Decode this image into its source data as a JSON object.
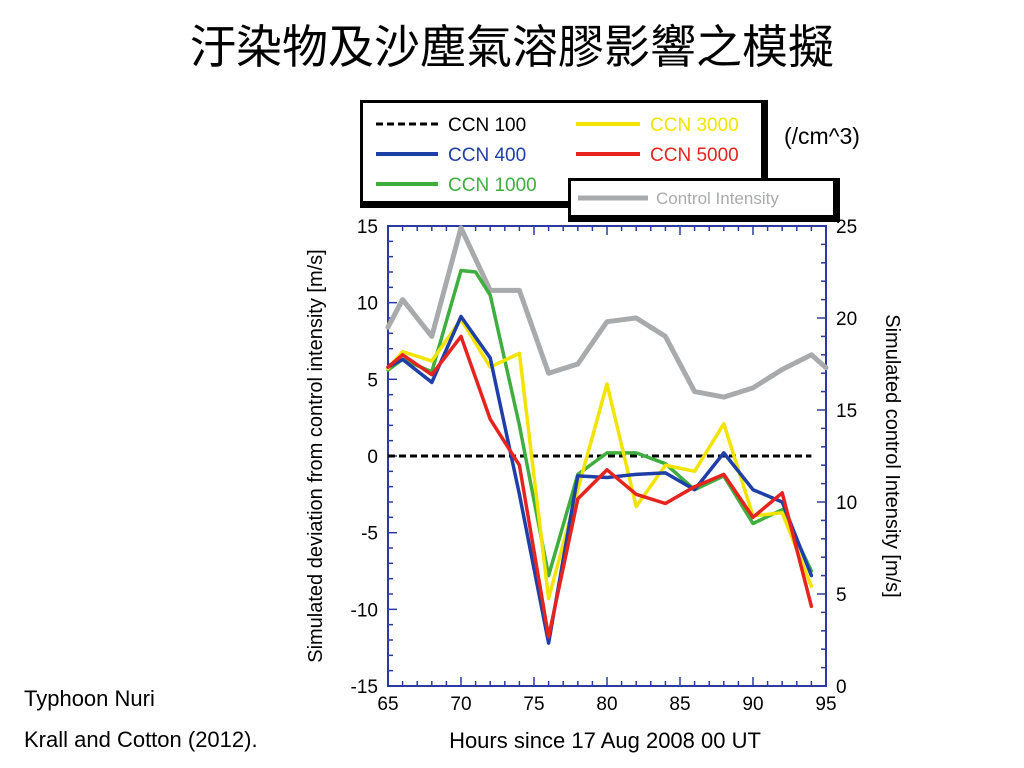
{
  "slide": {
    "title": "汙染物及沙塵氣溶膠影響之模擬",
    "unit_note": "(/cm^3)",
    "caption_line1": "Typhoon Nuri",
    "caption_line2": "Krall and Cotton (2012)."
  },
  "chart_data": {
    "type": "line",
    "xlabel": "Hours since 17 Aug 2008 00 UT",
    "ylabel": "Simulated deviation from control intensity [m/s]",
    "y2label": "Simulated control Intensity [m/s]",
    "xlim": [
      65,
      95
    ],
    "ylim": [
      -15,
      15
    ],
    "y2lim": [
      0,
      25
    ],
    "xticks": [
      65,
      70,
      75,
      80,
      85,
      90,
      95
    ],
    "yticks": [
      15,
      10,
      5,
      0,
      -5,
      -10,
      -15
    ],
    "y2ticks": [
      25,
      20,
      15,
      10,
      5,
      0
    ],
    "legend_placement": "top",
    "series": [
      {
        "name": "CCN 100",
        "color": "#000000",
        "dashed": true,
        "axis": "left",
        "x": [
          65,
          94
        ],
        "values": [
          0,
          0
        ]
      },
      {
        "name": "CCN 400",
        "color": "#1f3fa8",
        "axis": "left",
        "x": [
          65,
          66,
          68,
          70,
          72,
          74,
          76,
          78,
          80,
          82,
          84,
          86,
          88,
          90,
          92,
          94
        ],
        "values": [
          5.8,
          6.3,
          4.8,
          9.1,
          6.4,
          -2.5,
          -12.2,
          -1.3,
          -1.4,
          -1.2,
          -1.1,
          -2.2,
          0.2,
          -2.2,
          -3.0,
          -7.8
        ]
      },
      {
        "name": "CCN 1000",
        "color": "#3fae3f",
        "axis": "left",
        "x": [
          65,
          66,
          68,
          70,
          71,
          72,
          74,
          76,
          78,
          80,
          82,
          84,
          86,
          88,
          90,
          92,
          94
        ],
        "values": [
          5.6,
          6.3,
          5.5,
          12.1,
          12.0,
          10.5,
          2.0,
          -7.8,
          -1.2,
          0.2,
          0.2,
          -0.5,
          -2.2,
          -1.3,
          -4.4,
          -3.5,
          -7.5
        ]
      },
      {
        "name": "CCN 3000",
        "color": "#f2e400",
        "axis": "left",
        "x": [
          65,
          66,
          68,
          70,
          72,
          74,
          76,
          78,
          80,
          82,
          84,
          86,
          88,
          90,
          92,
          94
        ],
        "values": [
          5.7,
          6.8,
          6.2,
          8.9,
          5.8,
          6.7,
          -9.3,
          -2.2,
          4.7,
          -3.3,
          -0.6,
          -1.0,
          2.1,
          -3.9,
          -3.7,
          -8.5
        ]
      },
      {
        "name": "CCN 5000",
        "color": "#e52420",
        "axis": "left",
        "x": [
          65,
          66,
          68,
          70,
          72,
          74,
          76,
          78,
          80,
          82,
          84,
          86,
          88,
          90,
          92,
          94
        ],
        "values": [
          5.8,
          6.6,
          5.3,
          7.8,
          2.4,
          -0.6,
          -11.8,
          -2.8,
          -0.9,
          -2.5,
          -3.1,
          -2.0,
          -1.2,
          -4.0,
          -2.4,
          -9.8
        ]
      },
      {
        "name": "Control Intensity",
        "color": "#a9aaab",
        "axis": "right",
        "x": [
          65,
          66,
          68,
          70,
          72,
          74,
          76,
          78,
          80,
          82,
          84,
          86,
          88,
          90,
          92,
          94,
          95
        ],
        "values": [
          19.5,
          21.0,
          19.0,
          24.9,
          21.5,
          21.5,
          17.0,
          17.5,
          19.8,
          20.0,
          19.0,
          16.0,
          15.7,
          16.2,
          17.2,
          18.0,
          17.3
        ]
      }
    ]
  }
}
